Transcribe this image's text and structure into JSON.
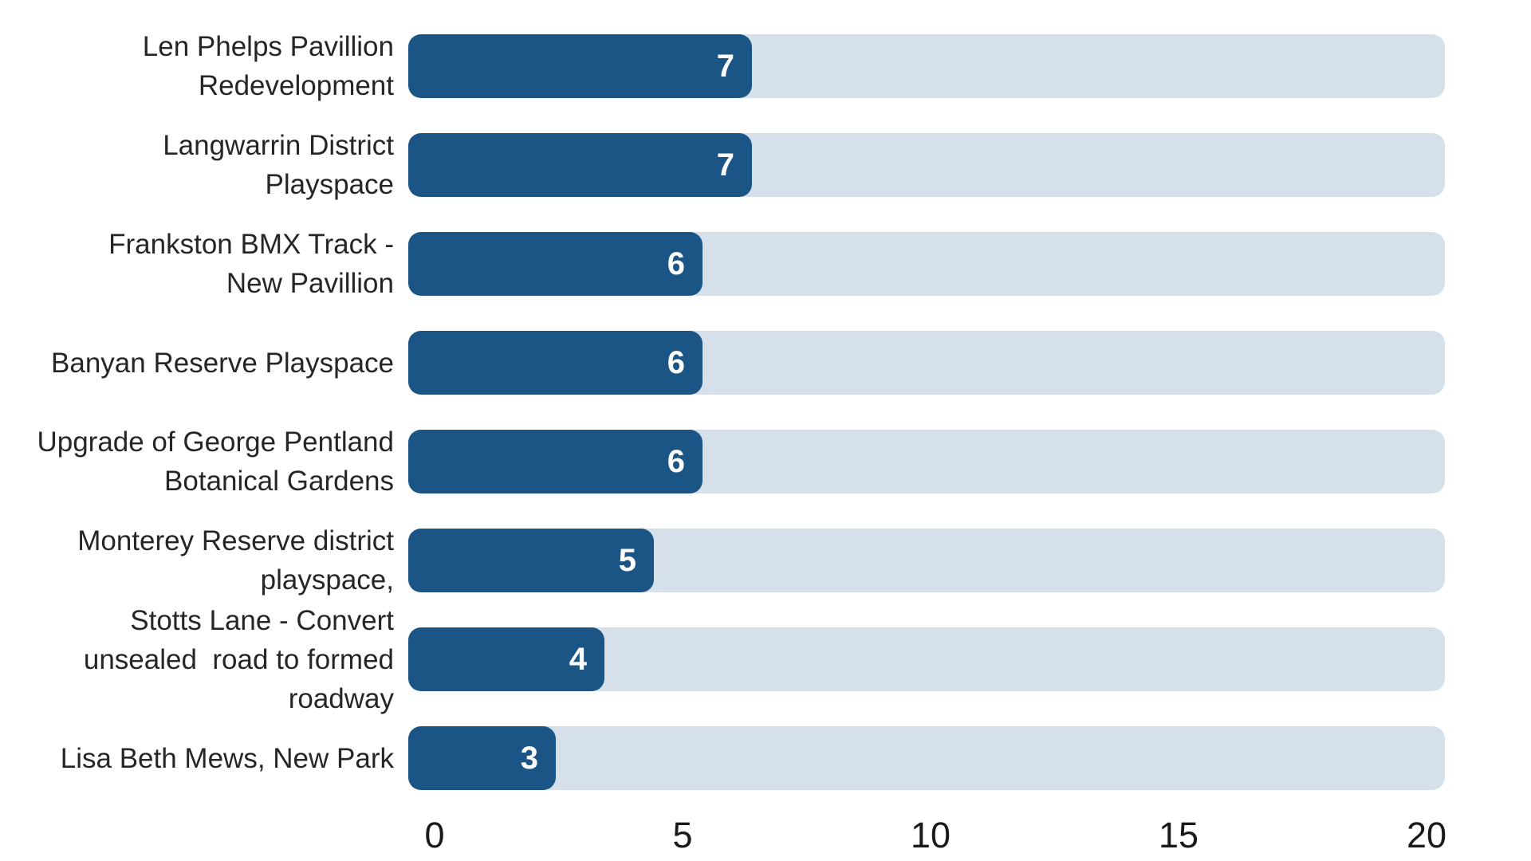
{
  "chart_data": {
    "type": "bar",
    "orientation": "horizontal",
    "title": "",
    "xlabel": "",
    "ylabel": "",
    "categories": [
      "Len Phelps Pavillion Redevelopment",
      "Langwarrin District Playspace",
      "Frankston BMX Track - New Pavillion",
      "Banyan Reserve Playspace",
      "Upgrade of George Pentland Botanical Gardens",
      "Monterey Reserve district playspace,",
      "Stotts Lane - Convert unsealed  road to formed roadway",
      "Lisa Beth Mews, New Park"
    ],
    "categories_lines": [
      [
        "Len Phelps Pavillion",
        "Redevelopment"
      ],
      [
        "Langwarrin District",
        "Playspace"
      ],
      [
        "Frankston BMX Track -",
        "New Pavillion"
      ],
      [
        "Banyan Reserve Playspace"
      ],
      [
        "Upgrade of George Pentland",
        "Botanical Gardens"
      ],
      [
        "Monterey Reserve district",
        "playspace,"
      ],
      [
        "Stotts Lane - Convert",
        "unsealed  road to formed",
        "roadway"
      ],
      [
        "Lisa Beth Mews, New Park"
      ]
    ],
    "values": [
      7,
      7,
      6,
      6,
      6,
      5,
      4,
      3
    ],
    "value_labels": [
      "7",
      "7",
      "6",
      "6",
      "6",
      "5",
      "4",
      "3"
    ],
    "xlim": [
      0,
      20
    ],
    "x_ticks": [
      0,
      5,
      10,
      15,
      20
    ],
    "x_tick_labels": [
      "0",
      "5",
      "10",
      "15",
      "20"
    ],
    "grid": false,
    "legend": false,
    "colors": {
      "bar_fill": "#1a5586",
      "bar_track": "#d5e0ea",
      "category_text": "#262626",
      "value_text": "#ffffff",
      "tick_text": "#1a1a1a",
      "background": "#ffffff"
    }
  }
}
